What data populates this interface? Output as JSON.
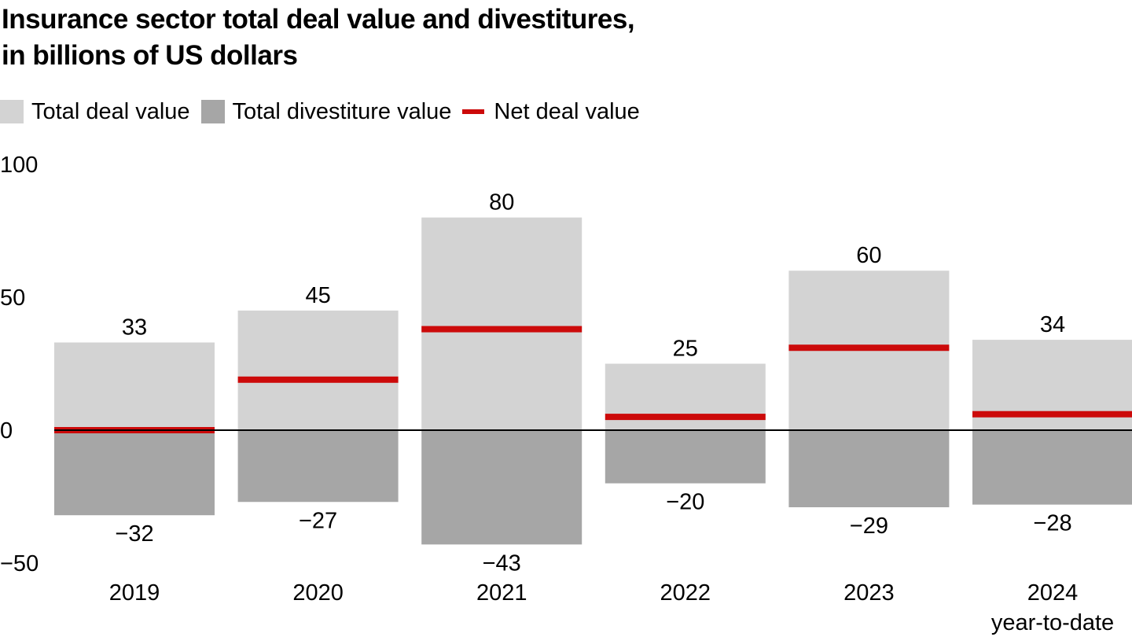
{
  "title_line1": "Insurance sector total deal value and divestitures,",
  "title_line2": "in billions of US dollars",
  "legend": {
    "deal": "Total deal value",
    "divest": "Total divestiture value",
    "net": "Net deal value"
  },
  "colors": {
    "deal": "#d3d3d3",
    "divest": "#a6a6a6",
    "net": "#cc0a0a",
    "zero_line": "#000000"
  },
  "chart_data": {
    "type": "bar",
    "categories": [
      "2019",
      "2020",
      "2021",
      "2022",
      "2023",
      "2024"
    ],
    "category_sublabels": [
      "",
      "",
      "",
      "",
      "",
      "year-to-date"
    ],
    "series": [
      {
        "name": "Total deal value",
        "values": [
          33,
          45,
          80,
          25,
          60,
          34
        ]
      },
      {
        "name": "Total divestiture value",
        "values": [
          -32,
          -27,
          -43,
          -20,
          -29,
          -28
        ]
      },
      {
        "name": "Net deal value",
        "values": [
          0,
          19,
          38,
          5,
          31,
          6
        ]
      }
    ],
    "value_labels": {
      "deal": [
        "33",
        "45",
        "80",
        "25",
        "60",
        "34"
      ],
      "divest": [
        "−32",
        "−27",
        "−43",
        "−20",
        "−29",
        "−28"
      ]
    },
    "yticks": [
      "100",
      "50",
      "0",
      "−50"
    ],
    "ytick_values": [
      100,
      50,
      0,
      -50
    ],
    "ylim": [
      -50,
      100
    ],
    "grid": false,
    "legend_position": "top-left"
  }
}
